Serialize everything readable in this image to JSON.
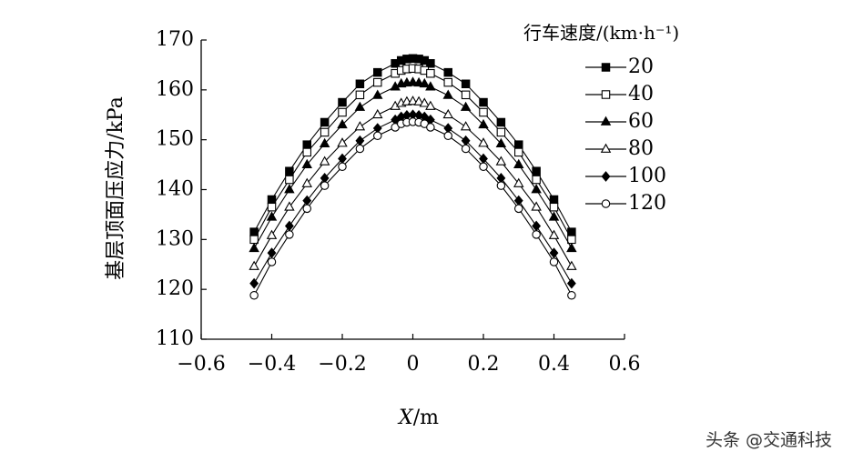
{
  "chart_data": {
    "type": "line",
    "xlabel_var": "X",
    "xlabel_unit": "/m",
    "ylabel": "基层顶面压应力/kPa",
    "xlim": [
      -0.6,
      0.6
    ],
    "ylim": [
      110,
      170
    ],
    "xticks": [
      "−0.6",
      "−0.4",
      "−0.2",
      "0",
      "0.2",
      "0.4",
      "0.6"
    ],
    "xtick_values": [
      -0.6,
      -0.4,
      -0.2,
      0,
      0.2,
      0.4,
      0.6
    ],
    "yticks": [
      "110",
      "120",
      "130",
      "140",
      "150",
      "160",
      "170"
    ],
    "ytick_values": [
      110,
      120,
      130,
      140,
      150,
      160,
      170
    ],
    "legend_title": "行车速度/(km·h⁻¹)",
    "legend_position": "right",
    "x": [
      -0.45,
      -0.4,
      -0.35,
      -0.3,
      -0.25,
      -0.2,
      -0.15,
      -0.1,
      -0.05,
      -0.033,
      -0.017,
      0,
      0.017,
      0.033,
      0.05,
      0.1,
      0.15,
      0.2,
      0.25,
      0.3,
      0.35,
      0.4,
      0.45
    ],
    "series": [
      {
        "name": "20",
        "marker": "square-filled",
        "values": [
          131.5,
          138,
          143.7,
          149,
          153.5,
          157.5,
          161.2,
          163.5,
          165.3,
          165.9,
          166.2,
          166.3,
          166.2,
          165.9,
          165.3,
          163.5,
          161.2,
          157.5,
          153.5,
          149,
          143.7,
          138,
          131.5
        ]
      },
      {
        "name": "40",
        "marker": "square-open",
        "values": [
          130,
          136.5,
          142,
          147.5,
          151.5,
          155.5,
          159,
          161.5,
          163.3,
          163.9,
          164.2,
          164.3,
          164.2,
          163.9,
          163.3,
          161.5,
          159,
          155.5,
          151.5,
          147.5,
          142,
          136.5,
          130
        ]
      },
      {
        "name": "60",
        "marker": "triangle-filled",
        "values": [
          128.2,
          134.5,
          140,
          145,
          149.2,
          153,
          156.5,
          158.9,
          160.6,
          161.2,
          161.4,
          161.5,
          161.4,
          161.2,
          160.6,
          158.9,
          156.5,
          153,
          149.2,
          145,
          140,
          134.5,
          128.2
        ]
      },
      {
        "name": "80",
        "marker": "triangle-open",
        "values": [
          124.6,
          130.8,
          136.5,
          141.2,
          145.6,
          149.3,
          152.6,
          155,
          156.7,
          157.3,
          157.6,
          157.7,
          157.6,
          157.3,
          156.7,
          155,
          152.6,
          149.3,
          145.6,
          141.2,
          136.5,
          130.8,
          124.6
        ]
      },
      {
        "name": "100",
        "marker": "diamond-filled",
        "values": [
          121.2,
          127.3,
          132.7,
          137.8,
          142.3,
          146.2,
          149.8,
          152.3,
          154,
          154.6,
          154.9,
          155,
          154.9,
          154.6,
          154,
          152.3,
          149.8,
          146.2,
          142.3,
          137.8,
          132.7,
          127.3,
          121.2
        ]
      },
      {
        "name": "120",
        "marker": "circle-open",
        "values": [
          118.8,
          125.5,
          131,
          136.2,
          140.8,
          144.6,
          148.2,
          150.8,
          152.5,
          153.2,
          153.5,
          153.6,
          153.5,
          153.2,
          152.5,
          150.8,
          148.2,
          144.6,
          140.8,
          136.2,
          131,
          125.5,
          118.8
        ]
      }
    ]
  },
  "watermark": "头条 @交通科技"
}
